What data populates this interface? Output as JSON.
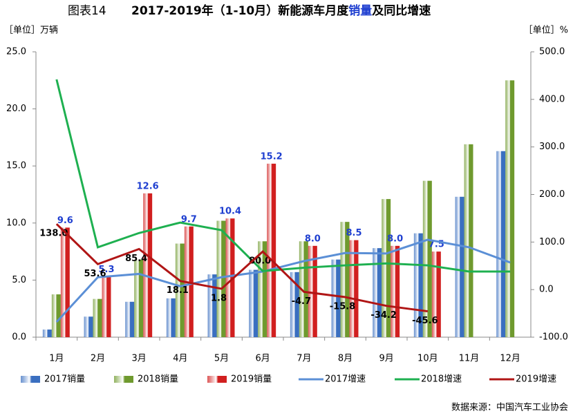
{
  "chart_data": {
    "type": "bar-line",
    "figure_label": "图表14",
    "title_parts": [
      "2017-2019年（1-10月）新能源车月度",
      "销量",
      "及同比增速"
    ],
    "title_colors": [
      "#000000",
      "#1f3fd0",
      "#000000"
    ],
    "ylabel": "［单位］万辆",
    "y2label": "［单位］%",
    "source": "数据来源：中国汽车工业协会",
    "categories": [
      "1月",
      "2月",
      "3月",
      "4月",
      "5月",
      "6月",
      "7月",
      "8月",
      "9月",
      "10月",
      "11月",
      "12月"
    ],
    "ylim": [
      0,
      25
    ],
    "yticks": [
      {
        "value": 0,
        "label": "0.0"
      },
      {
        "value": 5,
        "label": "5.0"
      },
      {
        "value": 10,
        "label": "10.0"
      },
      {
        "value": 15,
        "label": "15.0"
      },
      {
        "value": 20,
        "label": "20.0"
      },
      {
        "value": 25,
        "label": "25.0"
      }
    ],
    "y2lim": [
      -100,
      500
    ],
    "y2ticks": [
      {
        "value": -100,
        "label": "-100.0"
      },
      {
        "value": 0,
        "label": "0.0"
      },
      {
        "value": 100,
        "label": "100.0"
      },
      {
        "value": 200,
        "label": "200.0"
      },
      {
        "value": 300,
        "label": "300.0"
      },
      {
        "value": 400,
        "label": "400.0"
      },
      {
        "value": 500,
        "label": "500.0"
      }
    ],
    "series": [
      {
        "name": "2017销量",
        "kind": "bar",
        "color": "#3a6fc0",
        "values": [
          0.67,
          1.8,
          3.1,
          3.4,
          5.5,
          5.9,
          5.7,
          6.8,
          7.8,
          9.1,
          12.3,
          16.3
        ]
      },
      {
        "name": "2018销量",
        "kind": "bar",
        "color": "#6f9a2e",
        "values": [
          3.75,
          3.35,
          6.8,
          8.2,
          10.2,
          8.4,
          8.4,
          10.1,
          12.1,
          13.7,
          16.9,
          22.5
        ]
      },
      {
        "name": "2019销量",
        "kind": "bar",
        "color": "#d11f1f",
        "values": [
          9.6,
          5.3,
          12.6,
          9.7,
          10.4,
          15.2,
          8.0,
          8.5,
          8.0,
          7.5,
          null,
          null
        ],
        "value_labels": [
          "9.6",
          "5.3",
          "12.6",
          "9.7",
          "10.4",
          "15.2",
          "8.0",
          "8.5",
          "8.0",
          "7.5",
          null,
          null
        ],
        "label_color": "#1f3fd0"
      },
      {
        "name": "2017增速",
        "kind": "line",
        "axis": "y2",
        "color": "#5b8fd6",
        "values": [
          -68,
          26,
          33,
          7,
          26,
          38,
          60,
          77,
          76,
          105,
          89,
          57
        ]
      },
      {
        "name": "2018增速",
        "kind": "line",
        "axis": "y2",
        "color": "#1eb050",
        "values": [
          442,
          89,
          119,
          141,
          125,
          39,
          46,
          51,
          55,
          51,
          38,
          38
        ]
      },
      {
        "name": "2019增速",
        "kind": "line",
        "axis": "y2",
        "color": "#b01515",
        "values": [
          138.0,
          53.6,
          85.4,
          18.1,
          1.8,
          80.0,
          -4.7,
          -15.8,
          -34.2,
          -45.6,
          null,
          null
        ],
        "value_labels": [
          "138.0",
          "53.6",
          "85.4",
          "18.1",
          "1.8",
          "80.0",
          "-4.7",
          "-15.8",
          "-34.2",
          "-45.6",
          null,
          null
        ],
        "label_color": "#000000"
      }
    ]
  }
}
